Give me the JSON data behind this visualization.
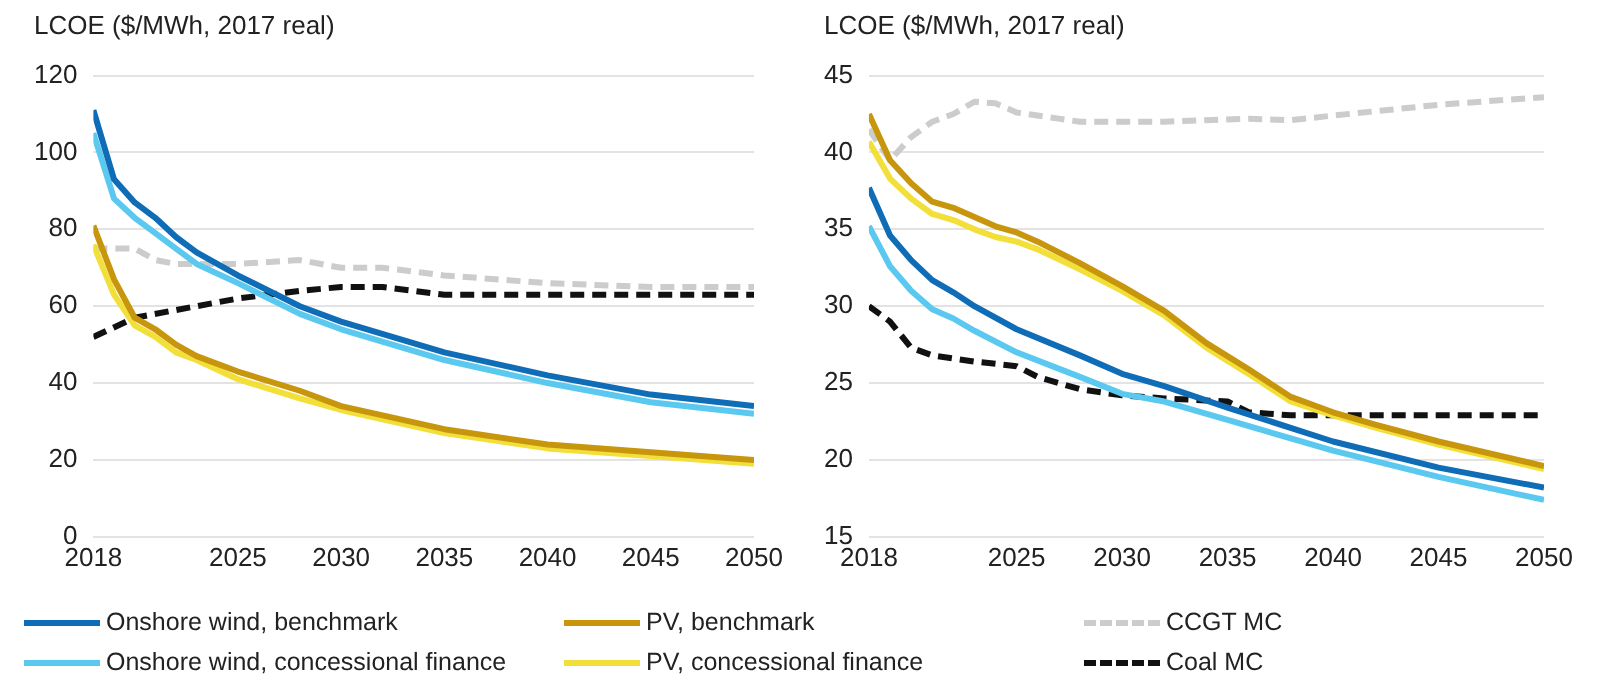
{
  "chart_data": [
    {
      "type": "line",
      "ylabel": "LCOE ($/MWh, 2017 real)",
      "xlim": [
        2018,
        2050
      ],
      "xticks": [
        2018,
        2025,
        2030,
        2035,
        2040,
        2045,
        2050
      ],
      "ylim": [
        0,
        120
      ],
      "yticks": [
        0,
        20,
        40,
        60,
        80,
        100,
        120
      ],
      "grid": "y",
      "legend": "bottom",
      "marker": "none",
      "series": [
        {
          "name": "Onshore wind, benchmark",
          "color": "#0f6cb6",
          "line_style": "solid",
          "x": [
            2018,
            2019,
            2020,
            2021,
            2022,
            2023,
            2025,
            2028,
            2030,
            2035,
            2040,
            2045,
            2050
          ],
          "values": [
            111,
            93,
            87,
            83,
            78,
            74,
            68,
            60,
            56,
            48,
            42,
            37,
            34
          ]
        },
        {
          "name": "Onshore wind, concessional finance",
          "color": "#5bc8f0",
          "line_style": "solid",
          "x": [
            2018,
            2019,
            2020,
            2021,
            2022,
            2023,
            2025,
            2028,
            2030,
            2035,
            2040,
            2045,
            2050
          ],
          "values": [
            105,
            88,
            83,
            79,
            75,
            71,
            66,
            58,
            54,
            46,
            40,
            35,
            32
          ]
        },
        {
          "name": "PV, benchmark",
          "color": "#c8960c",
          "line_style": "solid",
          "x": [
            2018,
            2019,
            2020,
            2021,
            2022,
            2023,
            2025,
            2028,
            2030,
            2035,
            2040,
            2045,
            2050
          ],
          "values": [
            81,
            67,
            57,
            54,
            50,
            47,
            43,
            38,
            34,
            28,
            24,
            22,
            20
          ]
        },
        {
          "name": "PV, concessional finance",
          "color": "#f2df3a",
          "line_style": "solid",
          "x": [
            2018,
            2019,
            2020,
            2021,
            2022,
            2023,
            2025,
            2028,
            2030,
            2035,
            2040,
            2045,
            2050
          ],
          "values": [
            76,
            63,
            55,
            52,
            48,
            46,
            41,
            36,
            33,
            27,
            23,
            21,
            19
          ]
        },
        {
          "name": "CCGT MC",
          "color": "#cccccc",
          "line_style": "dashed",
          "x": [
            2018,
            2020,
            2021,
            2022,
            2025,
            2028,
            2030,
            2032,
            2035,
            2040,
            2045,
            2050
          ],
          "values": [
            75,
            75,
            72,
            71,
            71,
            72,
            70,
            70,
            68,
            66,
            65,
            65
          ]
        },
        {
          "name": "Coal MC",
          "color": "#111111",
          "line_style": "dashed",
          "x": [
            2018,
            2020,
            2022,
            2025,
            2028,
            2030,
            2032,
            2035,
            2040,
            2045,
            2050
          ],
          "values": [
            52,
            57,
            59,
            62,
            64,
            65,
            65,
            63,
            63,
            63,
            63
          ]
        }
      ]
    },
    {
      "type": "line",
      "ylabel": "LCOE ($/MWh, 2017 real)",
      "xlim": [
        2018,
        2050
      ],
      "xticks": [
        2018,
        2025,
        2030,
        2035,
        2040,
        2045,
        2050
      ],
      "ylim": [
        15,
        45
      ],
      "yticks": [
        15,
        20,
        25,
        30,
        35,
        40,
        45
      ],
      "grid": "y",
      "marker": "none",
      "series": [
        {
          "color": "#0f6cb6",
          "line_style": "solid",
          "x": [
            2018,
            2019,
            2020,
            2021,
            2022,
            2023,
            2025,
            2028,
            2030,
            2032,
            2035,
            2040,
            2045,
            2050
          ],
          "values": [
            37.7,
            34.6,
            33.0,
            31.7,
            30.9,
            30.0,
            28.5,
            26.8,
            25.6,
            24.8,
            23.4,
            21.2,
            19.5,
            18.2
          ]
        },
        {
          "color": "#5bc8f0",
          "line_style": "solid",
          "x": [
            2018,
            2019,
            2020,
            2021,
            2022,
            2023,
            2025,
            2028,
            2030,
            2032,
            2035,
            2040,
            2045,
            2050
          ],
          "values": [
            35.2,
            32.6,
            31.0,
            29.8,
            29.2,
            28.4,
            27.0,
            25.4,
            24.3,
            23.8,
            22.6,
            20.6,
            18.9,
            17.4
          ]
        },
        {
          "color": "#c8960c",
          "line_style": "solid",
          "x": [
            2018,
            2019,
            2020,
            2021,
            2022,
            2023,
            2024,
            2025,
            2026,
            2028,
            2030,
            2032,
            2034,
            2036,
            2038,
            2040,
            2042,
            2045,
            2050
          ],
          "values": [
            42.5,
            39.5,
            38.0,
            36.8,
            36.4,
            35.8,
            35.2,
            34.8,
            34.2,
            32.8,
            31.3,
            29.7,
            27.6,
            25.9,
            24.1,
            23.1,
            22.3,
            21.2,
            19.6
          ]
        },
        {
          "color": "#f2df3a",
          "line_style": "solid",
          "x": [
            2018,
            2019,
            2020,
            2021,
            2022,
            2023,
            2024,
            2025,
            2026,
            2028,
            2030,
            2032,
            2034,
            2036,
            2038,
            2040,
            2042,
            2045,
            2050
          ],
          "values": [
            40.7,
            38.3,
            37.0,
            36.0,
            35.6,
            35.0,
            34.5,
            34.2,
            33.7,
            32.4,
            31.0,
            29.4,
            27.3,
            25.6,
            23.8,
            22.9,
            22.1,
            21.0,
            19.4
          ]
        },
        {
          "color": "#cccccc",
          "line_style": "dashed",
          "x": [
            2018,
            2019,
            2020,
            2021,
            2022,
            2023,
            2024,
            2025,
            2027,
            2028,
            2032,
            2036,
            2038,
            2040,
            2045,
            2050
          ],
          "values": [
            41.5,
            39.5,
            41.0,
            42.0,
            42.5,
            43.3,
            43.2,
            42.6,
            42.2,
            42.0,
            42.0,
            42.2,
            42.1,
            42.4,
            43.1,
            43.6
          ]
        },
        {
          "color": "#111111",
          "line_style": "dashed",
          "x": [
            2018,
            2019,
            2020,
            2021,
            2023,
            2025,
            2026,
            2028,
            2030,
            2032,
            2035,
            2036,
            2038,
            2040,
            2050
          ],
          "values": [
            30.0,
            29.0,
            27.3,
            26.8,
            26.4,
            26.1,
            25.4,
            24.6,
            24.2,
            24.0,
            23.8,
            23.1,
            22.9,
            22.9,
            22.9
          ]
        }
      ]
    }
  ]
}
